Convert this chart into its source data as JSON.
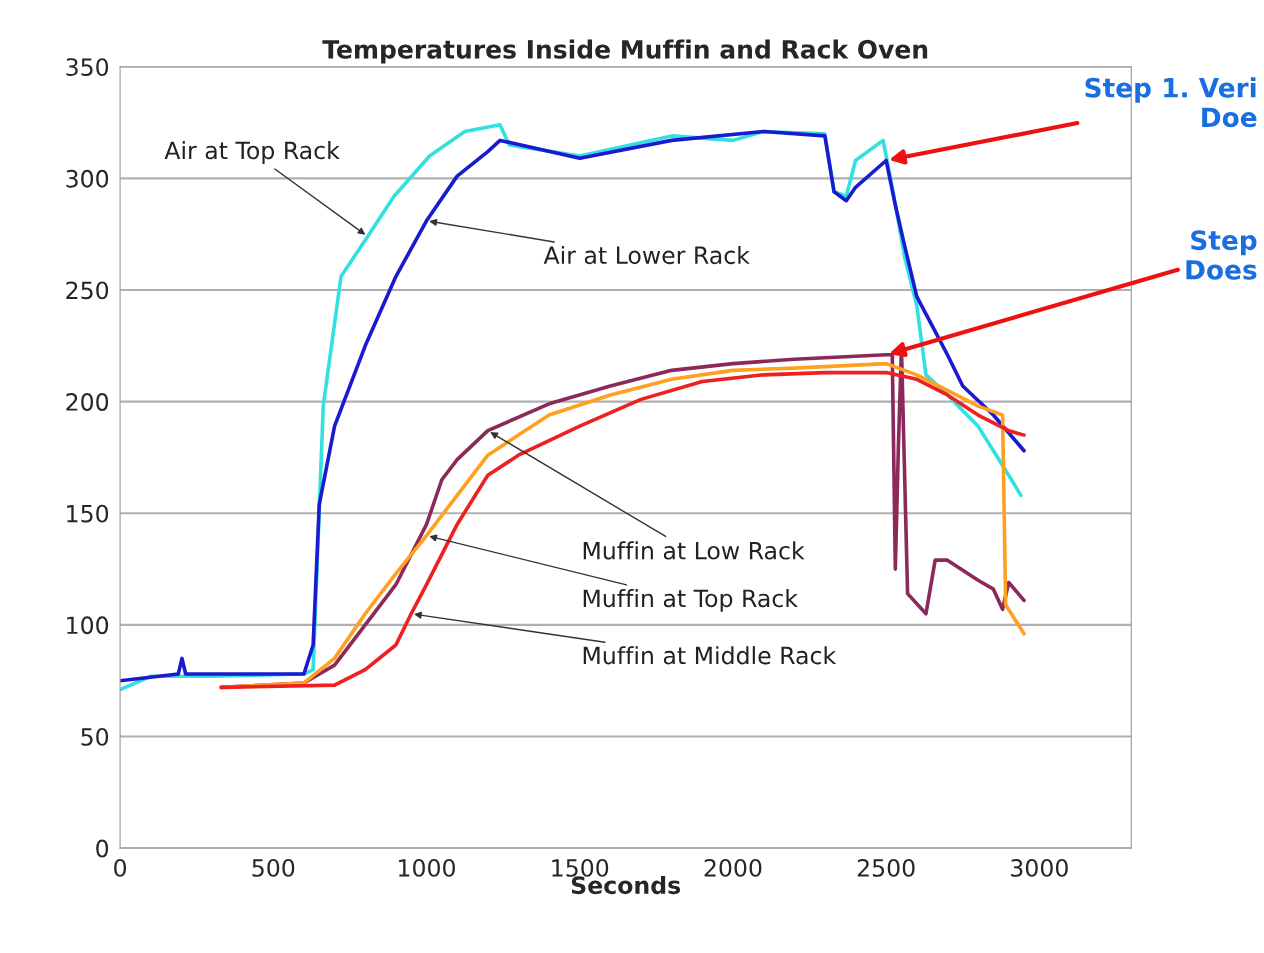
{
  "chart_data": {
    "type": "line",
    "title": "Temperatures Inside Muffin and Rack Oven",
    "xlabel": "Seconds",
    "xlim": [
      0,
      3300
    ],
    "xticks": [
      0,
      500,
      1000,
      1500,
      2000,
      2500,
      3000
    ],
    "ylim": [
      0,
      350
    ],
    "yticks": [
      0,
      50,
      100,
      150,
      200,
      250,
      300,
      350
    ],
    "grid": "y",
    "marker": "none",
    "line_style": "solid",
    "series": [
      {
        "color": "#33e0e0",
        "x": [
          0,
          100,
          300,
          600,
          630,
          663,
          721,
          808,
          894,
          1010,
          1125,
          1240,
          1270,
          1500,
          1800,
          2000,
          2100,
          2300,
          2330,
          2370,
          2400,
          2490,
          2520,
          2560,
          2600,
          2630,
          2700,
          2800,
          2900,
          2940
        ],
        "values": [
          71,
          77,
          77,
          78,
          80,
          198,
          256,
          274,
          292,
          310,
          321,
          324,
          315,
          310,
          319,
          317,
          321,
          320,
          294,
          292,
          308,
          317,
          296,
          265,
          243,
          212,
          203,
          189,
          167,
          158
        ]
      },
      {
        "color": "#1a1ad0",
        "x": [
          0,
          190,
          202,
          214,
          600,
          630,
          650,
          700,
          800,
          900,
          1000,
          1100,
          1200,
          1240,
          1500,
          1800,
          2100,
          2300,
          2330,
          2370,
          2400,
          2500,
          2530,
          2560,
          2600,
          2650,
          2700,
          2750,
          2850,
          2950
        ],
        "values": [
          75,
          78,
          85,
          78,
          78,
          91,
          154,
          189,
          225,
          256,
          281,
          301,
          312,
          317,
          309,
          317,
          321,
          319,
          294,
          290,
          296,
          308,
          288,
          270,
          247,
          234,
          221,
          207,
          194,
          178
        ]
      },
      {
        "color": "#8b2a5a",
        "x": [
          330,
          600,
          700,
          800,
          900,
          1000,
          1050,
          1100,
          1200,
          1400,
          1600,
          1800,
          2000,
          2200,
          2500,
          2520,
          2530,
          2540,
          2550,
          2570,
          2630,
          2660,
          2700,
          2800,
          2850,
          2880,
          2900,
          2950
        ],
        "values": [
          72,
          74,
          82,
          100,
          118,
          145,
          165,
          174,
          187,
          199,
          207,
          214,
          217,
          219,
          221,
          221,
          125,
          180,
          224,
          114,
          105,
          129,
          129,
          120,
          116,
          107,
          119,
          111
        ]
      },
      {
        "color": "#ffa020",
        "x": [
          330,
          600,
          700,
          800,
          900,
          1000,
          1100,
          1200,
          1400,
          1600,
          1800,
          2000,
          2200,
          2500,
          2600,
          2700,
          2800,
          2880,
          2890,
          2950
        ],
        "values": [
          72,
          74,
          85,
          105,
          123,
          140,
          158,
          176,
          194,
          203,
          210,
          214,
          215,
          217,
          212,
          205,
          198,
          194,
          109,
          96
        ]
      },
      {
        "color": "#ee2020",
        "x": [
          330,
          700,
          800,
          900,
          950,
          1000,
          1100,
          1200,
          1300,
          1500,
          1700,
          1900,
          2100,
          2300,
          2500,
          2600,
          2700,
          2800,
          2900,
          2950
        ],
        "values": [
          72,
          73,
          80,
          91,
          105,
          118,
          145,
          167,
          176,
          189,
          201,
          209,
          212,
          213,
          213,
          210,
          203,
          194,
          187,
          185
        ]
      }
    ],
    "annotations": [
      {
        "text": "Air at Top Rack",
        "x": 808,
        "y": 274
      },
      {
        "text": "Air at Lower Rack",
        "x": 1000,
        "y": 281
      },
      {
        "text": "Muffin at Low Rack",
        "x": 1200,
        "y": 187
      },
      {
        "text": "Muffin at Top Rack",
        "x": 1000,
        "y": 140
      },
      {
        "text": "Muffin at Middle Rack",
        "x": 950,
        "y": 105
      },
      {
        "text": "Step 1. Veri\nDoe",
        "x": 2500,
        "y": 308
      },
      {
        "text": "Step\nDoes",
        "x": 2500,
        "y": 221
      }
    ]
  }
}
